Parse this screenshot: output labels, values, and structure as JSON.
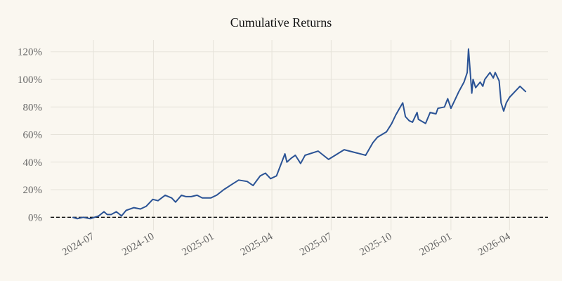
{
  "chart_data": {
    "type": "line",
    "title": "Cumulative Returns",
    "xlabel": "",
    "ylabel": "",
    "xlim": [
      "2024-04-26",
      "2026-05-30"
    ],
    "ylim": [
      -8,
      127
    ],
    "grid": true,
    "line_color": "#2b5395",
    "baseline": 0,
    "x_ticks": [
      "2024-07",
      "2024-10",
      "2025-01",
      "2025-04",
      "2025-07",
      "2025-10",
      "2026-01",
      "2026-04"
    ],
    "y_ticks": [
      0,
      20,
      40,
      60,
      80,
      100,
      120
    ],
    "y_tick_labels": [
      "0%",
      "20%",
      "40%",
      "60%",
      "80%",
      "100%",
      "120%"
    ],
    "series": [
      {
        "name": "Cumulative Returns",
        "x": [
          "2024-05-30",
          "2024-06-06",
          "2024-06-15",
          "2024-06-26",
          "2024-07-09",
          "2024-07-17",
          "2024-07-22",
          "2024-07-28",
          "2024-08-05",
          "2024-08-13",
          "2024-08-20",
          "2024-09-01",
          "2024-09-11",
          "2024-09-20",
          "2024-09-30",
          "2024-10-08",
          "2024-10-19",
          "2024-10-29",
          "2024-11-04",
          "2024-11-13",
          "2024-11-20",
          "2024-11-28",
          "2024-12-07",
          "2024-12-15",
          "2024-12-28",
          "2025-01-06",
          "2025-01-17",
          "2025-01-30",
          "2025-02-09",
          "2025-02-22",
          "2025-03-03",
          "2025-03-14",
          "2025-03-22",
          "2025-03-30",
          "2025-04-08",
          "2025-04-21",
          "2025-04-24",
          "2025-05-01",
          "2025-05-07",
          "2025-05-15",
          "2025-05-22",
          "2025-06-11",
          "2025-06-27",
          "2025-07-21",
          "2025-08-23",
          "2025-09-03",
          "2025-09-10",
          "2025-09-24",
          "2025-10-02",
          "2025-10-08",
          "2025-10-14",
          "2025-10-19",
          "2025-10-23",
          "2025-10-29",
          "2025-11-03",
          "2025-11-10",
          "2025-11-12",
          "2025-11-23",
          "2025-11-30",
          "2025-12-09",
          "2025-12-12",
          "2025-12-22",
          "2025-12-27",
          "2026-01-01",
          "2026-01-07",
          "2026-01-13",
          "2026-01-21",
          "2026-01-26",
          "2026-01-28",
          "2026-02-02",
          "2026-02-04",
          "2026-02-08",
          "2026-02-15",
          "2026-02-19",
          "2026-02-22",
          "2026-03-02",
          "2026-03-07",
          "2026-03-10",
          "2026-03-16",
          "2026-03-19",
          "2026-03-23",
          "2026-03-27",
          "2026-04-01",
          "2026-04-09",
          "2026-04-17",
          "2026-04-26"
        ],
        "y": [
          0,
          -1,
          0,
          -1,
          1,
          4,
          2,
          2,
          4,
          1,
          5,
          7,
          6,
          8,
          13,
          12,
          16,
          14,
          11,
          16,
          15,
          15,
          16,
          14,
          14,
          16,
          20,
          24,
          27,
          26,
          23,
          30,
          32,
          28,
          30,
          46,
          40,
          43,
          45,
          39,
          45,
          48,
          42,
          49,
          45,
          54,
          58,
          62,
          68,
          74,
          79,
          83,
          73,
          70,
          69,
          76,
          71,
          68,
          76,
          75,
          79,
          80,
          86,
          79,
          85,
          91,
          98,
          105,
          122,
          90,
          100,
          94,
          98,
          95,
          100,
          105,
          101,
          105,
          99,
          83,
          77,
          83,
          87,
          91,
          95,
          91
        ]
      }
    ]
  }
}
